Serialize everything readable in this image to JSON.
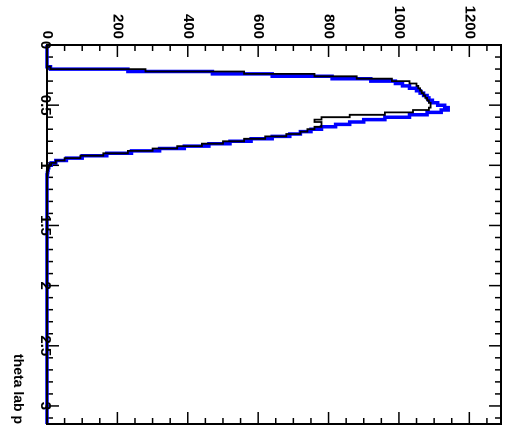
{
  "chart_data": {
    "type": "line",
    "orientation": "rotated-90-clockwise",
    "title": "",
    "xlabel": "theta lab p",
    "ylabel": "",
    "xlim": [
      0,
      3.15
    ],
    "ylim": [
      0,
      1290
    ],
    "x_ticks": [
      {
        "value": 0,
        "label": "0"
      },
      {
        "value": 0.5,
        "label": "0.5"
      },
      {
        "value": 1,
        "label": "1"
      },
      {
        "value": 1.5,
        "label": "1.5"
      },
      {
        "value": 2,
        "label": "2"
      },
      {
        "value": 2.5,
        "label": "2.5"
      },
      {
        "value": 3,
        "label": "3"
      }
    ],
    "y_ticks": [
      {
        "value": 0,
        "label": "0"
      },
      {
        "value": 200,
        "label": "200"
      },
      {
        "value": 400,
        "label": "400"
      },
      {
        "value": 600,
        "label": "600"
      },
      {
        "value": 800,
        "label": "800"
      },
      {
        "value": 1000,
        "label": "1000"
      },
      {
        "value": 1200,
        "label": "1200"
      }
    ],
    "grid": false,
    "legend": "none",
    "series": [
      {
        "color": "#0000ff",
        "style": "step",
        "x": [
          0.0,
          0.05,
          0.1,
          0.15,
          0.18,
          0.2,
          0.22,
          0.24,
          0.26,
          0.28,
          0.3,
          0.32,
          0.34,
          0.36,
          0.38,
          0.4,
          0.42,
          0.44,
          0.46,
          0.48,
          0.5,
          0.52,
          0.54,
          0.56,
          0.58,
          0.6,
          0.62,
          0.64,
          0.66,
          0.68,
          0.7,
          0.72,
          0.74,
          0.76,
          0.78,
          0.8,
          0.82,
          0.84,
          0.86,
          0.88,
          0.9,
          0.92,
          0.94,
          0.96,
          0.98,
          1.0,
          1.02,
          1.04,
          1.06,
          1.08,
          1.1,
          1.15,
          1.2,
          1.3,
          1.5,
          2.0,
          2.5,
          3.0,
          3.15
        ],
        "y": [
          0,
          0,
          0,
          0,
          10,
          230,
          470,
          640,
          810,
          920,
          990,
          1010,
          1030,
          1050,
          1060,
          1070,
          1080,
          1085,
          1095,
          1110,
          1130,
          1140,
          1120,
          1080,
          1030,
          960,
          900,
          860,
          820,
          780,
          750,
          720,
          690,
          640,
          580,
          520,
          460,
          390,
          320,
          240,
          170,
          100,
          55,
          25,
          12,
          5,
          3,
          2,
          1,
          0,
          0,
          0,
          0,
          0,
          0,
          0,
          0,
          0,
          0
        ]
      },
      {
        "color": "#000000",
        "style": "step",
        "x": [
          0.0,
          0.05,
          0.1,
          0.15,
          0.18,
          0.2,
          0.22,
          0.24,
          0.26,
          0.28,
          0.3,
          0.32,
          0.34,
          0.36,
          0.38,
          0.4,
          0.42,
          0.44,
          0.46,
          0.48,
          0.5,
          0.52,
          0.54,
          0.56,
          0.58,
          0.6,
          0.62,
          0.64,
          0.66,
          0.68,
          0.7,
          0.72,
          0.74,
          0.76,
          0.78,
          0.8,
          0.82,
          0.84,
          0.86,
          0.88,
          0.9,
          0.92,
          0.94,
          0.96,
          0.98,
          1.0,
          1.02,
          1.04,
          1.06,
          1.08,
          1.1,
          1.15,
          1.2,
          1.3,
          1.5,
          2.0,
          2.5,
          3.0,
          3.15
        ],
        "y": [
          0,
          0,
          0,
          0,
          10,
          280,
          560,
          760,
          880,
          980,
          1030,
          1050,
          1055,
          1060,
          1065,
          1070,
          1075,
          1080,
          1085,
          1090,
          1090,
          1085,
          1040,
          960,
          860,
          780,
          760,
          780,
          780,
          760,
          740,
          720,
          680,
          620,
          560,
          500,
          440,
          370,
          300,
          230,
          160,
          95,
          50,
          25,
          12,
          5,
          3,
          2,
          1,
          0,
          0,
          0,
          0,
          0,
          0,
          0,
          0,
          0,
          0
        ]
      }
    ]
  }
}
